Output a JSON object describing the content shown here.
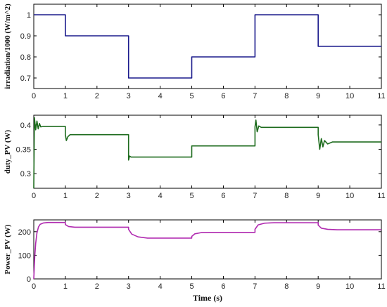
{
  "chart_data": [
    {
      "type": "line",
      "ylabel": "irradiation/1000 (W/m^2)",
      "xlabel": "",
      "xlim": [
        0,
        11
      ],
      "ylim": [
        0.65,
        1.05
      ],
      "xticks": [
        "0",
        "1",
        "2",
        "3",
        "4",
        "5",
        "6",
        "7",
        "8",
        "9",
        "10",
        "11"
      ],
      "yticks": [
        0.7,
        0.8,
        0.9,
        1.0
      ],
      "ytick_labels": [
        "0.7",
        "0.8",
        "0.9",
        "1"
      ],
      "grid": false,
      "series": [
        {
          "color": "#1a1a8c",
          "x": [
            0,
            1,
            1,
            3,
            3,
            5,
            5,
            7,
            7,
            9,
            9,
            11
          ],
          "y": [
            1.0,
            1.0,
            0.9,
            0.9,
            0.7,
            0.7,
            0.8,
            0.8,
            1.0,
            1.0,
            0.85,
            0.85
          ]
        }
      ]
    },
    {
      "type": "line",
      "ylabel": "duty_PV (W)",
      "xlabel": "",
      "xlim": [
        0,
        11
      ],
      "ylim": [
        0.27,
        0.42
      ],
      "xticks": [
        "0",
        "1",
        "2",
        "3",
        "4",
        "5",
        "6",
        "7",
        "8",
        "9",
        "10",
        "11"
      ],
      "yticks": [
        0.3,
        0.35,
        0.4
      ],
      "ytick_labels": [
        "0.3",
        "0.35",
        "0.4"
      ],
      "grid": false,
      "series": [
        {
          "color": "#1d6b1d",
          "x": [
            0,
            0.02,
            0.06,
            0.1,
            0.14,
            0.18,
            0.22,
            0.3,
            1.0,
            1.0,
            1.03,
            1.08,
            1.15,
            3.0,
            3.0,
            3.03,
            3.08,
            5.0,
            5.0,
            7.0,
            7.0,
            7.03,
            7.07,
            7.12,
            7.2,
            9.0,
            9.0,
            9.05,
            9.1,
            9.15,
            9.2,
            9.3,
            9.45,
            11.0
          ],
          "y": [
            0.27,
            0.415,
            0.39,
            0.408,
            0.392,
            0.403,
            0.396,
            0.397,
            0.397,
            0.38,
            0.368,
            0.376,
            0.38,
            0.38,
            0.328,
            0.336,
            0.334,
            0.334,
            0.357,
            0.357,
            0.396,
            0.41,
            0.386,
            0.398,
            0.395,
            0.395,
            0.38,
            0.35,
            0.372,
            0.355,
            0.368,
            0.361,
            0.365,
            0.365
          ]
        }
      ]
    },
    {
      "type": "line",
      "ylabel": "Power_PV (W)",
      "xlabel": "Time (s)",
      "xlim": [
        0,
        11
      ],
      "ylim": [
        0,
        250
      ],
      "xticks": [
        "0",
        "1",
        "2",
        "3",
        "4",
        "5",
        "6",
        "7",
        "8",
        "9",
        "10",
        "11"
      ],
      "yticks": [
        0,
        100,
        200
      ],
      "ytick_labels": [
        "0",
        "100",
        "200"
      ],
      "grid": false,
      "series": [
        {
          "color": "#b02ab0",
          "x": [
            0,
            0.03,
            0.06,
            0.1,
            0.15,
            0.2,
            0.3,
            0.45,
            1.0,
            1.0,
            1.1,
            1.3,
            3.0,
            3.0,
            3.1,
            3.3,
            3.6,
            5.0,
            5.0,
            5.1,
            5.3,
            5.6,
            7.0,
            7.0,
            7.1,
            7.3,
            7.6,
            9.0,
            9.0,
            9.1,
            9.3,
            9.6,
            11.0
          ],
          "y": [
            0,
            90,
            150,
            195,
            220,
            231,
            237,
            239,
            239,
            230,
            222,
            219,
            219,
            210,
            190,
            178,
            173,
            173,
            180,
            191,
            196,
            197,
            197,
            210,
            229,
            236,
            238,
            238,
            228,
            215,
            210,
            208,
            208
          ]
        }
      ]
    }
  ]
}
